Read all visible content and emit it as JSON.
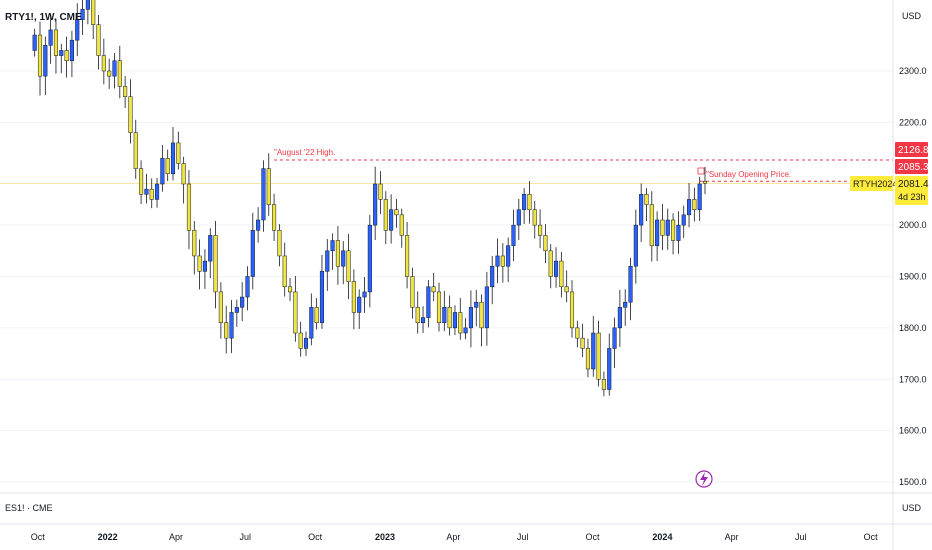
{
  "header": {
    "symbol_title": "RTY1!, 1W, CME"
  },
  "currency": "USD",
  "bottom_pane": {
    "label": "ES1! · CME",
    "currency": "USD"
  },
  "price_tags": {
    "high": {
      "value": "2126.8",
      "color": "#f23645"
    },
    "open": {
      "value": "2085.3",
      "color": "#f23645"
    },
    "symbol": {
      "name": "RTYH2024",
      "price": "2081.4",
      "countdown": "4d 23h",
      "color": "#ffeb3b"
    }
  },
  "annotations": {
    "august_high": "\"August '22 High.",
    "sunday_open": "\"Sunday Opening Price."
  },
  "colors": {
    "up": "#2962ff",
    "down": "#f0e442",
    "wick": "#131722",
    "level": "#f23645",
    "lightning": "#9c27b0"
  },
  "chart_data": {
    "type": "candlestick",
    "yaxis": {
      "ticks": [
        2300,
        2200,
        2000,
        1900,
        1800,
        1700,
        1600,
        1500
      ],
      "labels": [
        "2300.0",
        "2200.0",
        "2000.0",
        "1900.0",
        "1800.0",
        "1700.0",
        "1600.0",
        "1500.0"
      ],
      "ylim": [
        1480,
        2450
      ]
    },
    "xaxis": {
      "ticks": [
        {
          "label": "Oct",
          "date": "2021-10-01",
          "bold": false
        },
        {
          "label": "2022",
          "date": "2022-01-01",
          "bold": true
        },
        {
          "label": "Apr",
          "date": "2022-04-01",
          "bold": false
        },
        {
          "label": "Jul",
          "date": "2022-07-01",
          "bold": false
        },
        {
          "label": "Oct",
          "date": "2022-10-01",
          "bold": false
        },
        {
          "label": "2023",
          "date": "2023-01-01",
          "bold": true
        },
        {
          "label": "Apr",
          "date": "2023-04-01",
          "bold": false
        },
        {
          "label": "Jul",
          "date": "2023-07-01",
          "bold": false
        },
        {
          "label": "Oct",
          "date": "2023-10-01",
          "bold": false
        },
        {
          "label": "2024",
          "date": "2024-01-01",
          "bold": true
        },
        {
          "label": "Apr",
          "date": "2024-04-01",
          "bold": false
        },
        {
          "label": "Jul",
          "date": "2024-07-01",
          "bold": false
        },
        {
          "label": "Oct",
          "date": "2024-10-01",
          "bold": false
        }
      ]
    },
    "levels": [
      2126.8,
      2085.3
    ],
    "close": [
      2370,
      2290,
      2350,
      2380,
      2330,
      2340,
      2320,
      2360,
      2400,
      2420,
      2450,
      2390,
      2330,
      2300,
      2290,
      2320,
      2270,
      2250,
      2180,
      2110,
      2060,
      2070,
      2050,
      2080,
      2130,
      2100,
      2160,
      2120,
      2080,
      1990,
      1940,
      1910,
      1930,
      1980,
      1870,
      1810,
      1780,
      1830,
      1840,
      1860,
      1900,
      1990,
      2010,
      2110,
      2040,
      1990,
      1940,
      1880,
      1870,
      1790,
      1760,
      1780,
      1840,
      1810,
      1910,
      1950,
      1970,
      1920,
      1950,
      1890,
      1830,
      1860,
      1870,
      2000,
      2080,
      2050,
      1990,
      2030,
      2020,
      1980,
      1900,
      1840,
      1810,
      1820,
      1880,
      1870,
      1810,
      1840,
      1800,
      1830,
      1790,
      1800,
      1840,
      1850,
      1800,
      1880,
      1920,
      1940,
      1920,
      1960,
      2000,
      2030,
      2060,
      2030,
      2000,
      1980,
      1950,
      1900,
      1930,
      1880,
      1870,
      1800,
      1780,
      1760,
      1720,
      1790,
      1700,
      1680,
      1760,
      1800,
      1840,
      1850,
      1920,
      2000,
      2060,
      2040,
      1960,
      2010,
      1980,
      2010,
      1970,
      2000,
      2020,
      2050,
      2030,
      2080,
      2081.4
    ],
    "open_price_last": 2085.3
  }
}
